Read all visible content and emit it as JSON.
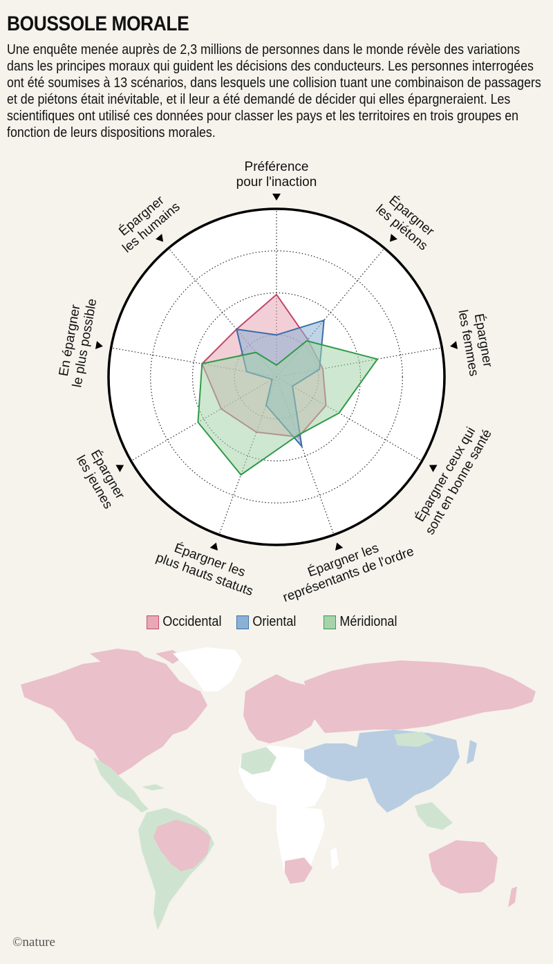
{
  "header": {
    "title": "BOUSSOLE MORALE",
    "intro": "Une enquête menée auprès de 2,3 millions de personnes dans le monde révèle des variations dans les principes moraux qui guident les décisions des conducteurs. Les personnes interrogées ont été soumises à 13 scénarios, dans lesquels une collision tuant une combinaison de passagers et de piétons était inévitable, et il leur a été demandé de décider qui elles épargneraient. Les scientifiques ont utilisé ces données pour classer les pays et les territoires en trois groupes en fonction de leurs dispositions morales."
  },
  "chart_data": {
    "type": "radar",
    "axes": [
      {
        "label": [
          "Préférence",
          "pour l'inaction"
        ]
      },
      {
        "label": [
          "Épargner",
          "les piétons"
        ]
      },
      {
        "label": [
          "Épargner",
          "les femmes"
        ]
      },
      {
        "label": [
          "Épargner ceux qui",
          "sont en bonne santé"
        ]
      },
      {
        "label": [
          "Épargner les",
          "représentants de l'ordre"
        ]
      },
      {
        "label": [
          "Épargner les",
          "plus hauts statuts"
        ]
      },
      {
        "label": [
          "Épargner",
          "les jeunes"
        ]
      },
      {
        "label": [
          "En épargner",
          "le plus possible"
        ]
      },
      {
        "label": [
          "Épargner",
          "les humains"
        ]
      }
    ],
    "rlim": [
      0,
      1
    ],
    "series": [
      {
        "name": "Occidental",
        "color": "#c0466a",
        "fill": "#e8a8b6",
        "values": [
          0.49,
          0.29,
          0.28,
          0.34,
          0.38,
          0.35,
          0.38,
          0.45,
          0.37
        ]
      },
      {
        "name": "Oriental",
        "color": "#3a6da8",
        "fill": "#8ab0d4",
        "values": [
          0.25,
          0.44,
          0.26,
          0.11,
          0.44,
          0.18,
          0.03,
          0.18,
          0.37
        ]
      },
      {
        "name": "Méridional",
        "color": "#2e9a47",
        "fill": "#a6d3ac",
        "values": [
          0.07,
          0.28,
          0.61,
          0.43,
          0.37,
          0.62,
          0.54,
          0.45,
          0.19
        ]
      }
    ],
    "legend": [
      {
        "name": "Occidental",
        "fill": "#e8a8b6",
        "stroke": "#c0466a"
      },
      {
        "name": "Oriental",
        "fill": "#8ab0d4",
        "stroke": "#3a6da8"
      },
      {
        "name": "Méridional",
        "fill": "#a6d3ac",
        "stroke": "#2e9a47"
      }
    ]
  },
  "map": {
    "colors": {
      "Occidental": "#eac0ca",
      "Oriental": "#b8cde2",
      "Méridional": "#cfe4d0",
      "none": "#ffffff"
    }
  },
  "credit": "©nature"
}
